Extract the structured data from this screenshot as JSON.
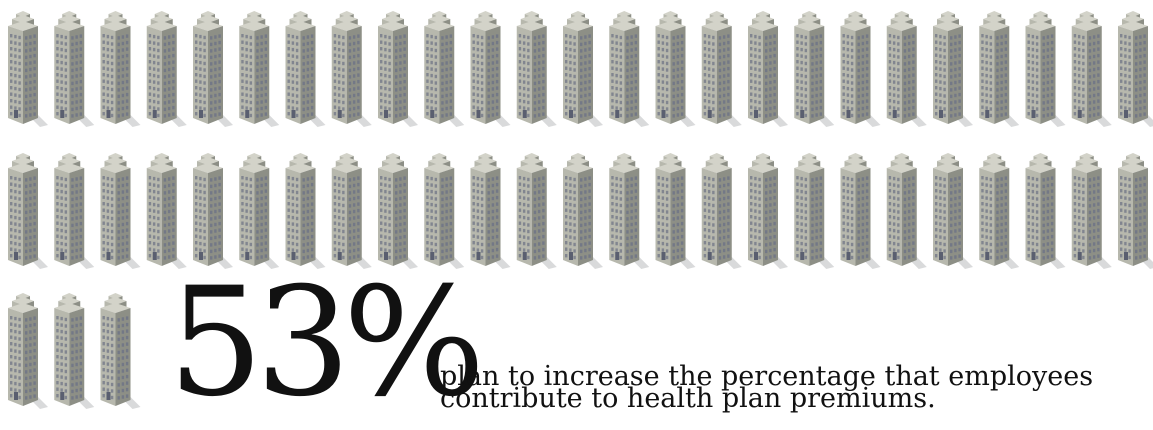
{
  "chart_data": {
    "type": "pictogram",
    "value": 53,
    "unit": "%",
    "icon": "office-building-icon",
    "icon_count": 53,
    "rows": [
      25,
      25,
      3
    ],
    "colors": {
      "building_light": "#d3d3c9",
      "building_mid": "#b7b8ad",
      "building_dark": "#8d8f86",
      "window": "#6f7486",
      "shadow": "#d9dadb"
    }
  },
  "headline": {
    "number": "53",
    "percent": "%"
  },
  "caption": {
    "line1": "plan to increase the percentage that employees",
    "line2": "contribute to health plan premiums."
  }
}
